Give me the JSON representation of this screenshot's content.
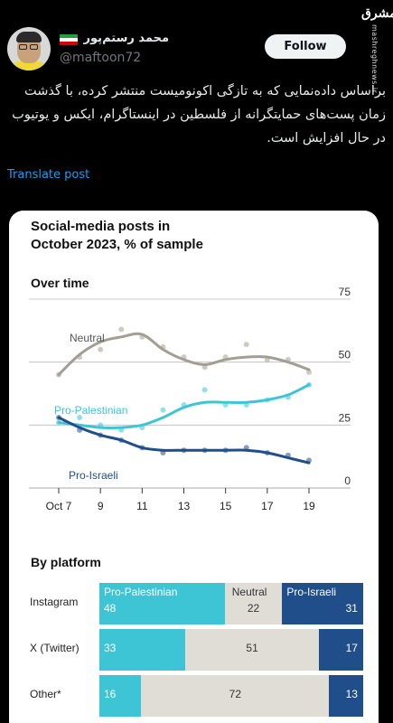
{
  "user": {
    "display_name": "محمد رستم‌پور",
    "handle": "@maftoon72",
    "follow_label": "Follow",
    "flag_colors": [
      "#239f40",
      "#ffffff",
      "#da0000"
    ]
  },
  "watermark": {
    "logo": "مشرق",
    "site": "mashreghnews.ir"
  },
  "tweet": {
    "text": "براساس داده‌نمایی که به تازگی اکونومیست منتشر کرده، با گذشت زمان پست‌های حمایتگرانه از فلسطین در اینستاگرام، ایکس و  یوتیوب در حال افزایش است.",
    "translate_label": "Translate post"
  },
  "card": {
    "title_line1": "Social-media posts in",
    "title_line2": "October 2023, % of sample",
    "over_time_title": "Over time",
    "by_platform_title": "By platform"
  },
  "colors": {
    "neutral": "#a39e94",
    "neutral_bar": "#e0ddd7",
    "pro_palestinian": "#3ec5d5",
    "pro_israeli": "#1f4e8a",
    "grid": "#bbbbbb"
  },
  "chart_data": [
    {
      "type": "line",
      "title": "Over time",
      "x": [
        7,
        8,
        9,
        10,
        11,
        12,
        13,
        14,
        15,
        16,
        17,
        18,
        19
      ],
      "xticks": [
        7,
        9,
        11,
        13,
        15,
        17,
        19
      ],
      "xtick_labels": [
        "Oct 7",
        "9",
        "11",
        "13",
        "15",
        "17",
        "19"
      ],
      "ylim": [
        0,
        75
      ],
      "yticks": [
        0,
        25,
        50,
        75
      ],
      "grid": true,
      "series": [
        {
          "name": "Neutral",
          "color": "#a39e94",
          "smooth": [
            45,
            53,
            58,
            60,
            61,
            55,
            51,
            49,
            51,
            52,
            52,
            50,
            47
          ],
          "points": [
            45,
            52,
            55,
            63,
            60,
            56,
            52,
            48,
            52,
            57,
            51,
            51,
            46
          ]
        },
        {
          "name": "Pro-Palestinian",
          "color": "#3ec5d5",
          "smooth": [
            26,
            25,
            24,
            24,
            25,
            28,
            32,
            34,
            34,
            34,
            35,
            37,
            41
          ],
          "points": [
            26,
            28,
            25,
            23,
            24,
            31,
            33,
            39,
            33,
            33,
            35,
            36,
            41
          ]
        },
        {
          "name": "Pro-Israeli",
          "color": "#1f4e8a",
          "smooth": [
            28,
            24,
            21,
            19,
            16,
            15,
            15,
            15,
            15,
            15,
            14,
            12,
            10
          ],
          "points": [
            28,
            23,
            21,
            19,
            16,
            14,
            15,
            15,
            15,
            16,
            14,
            13,
            11
          ]
        }
      ]
    },
    {
      "type": "bar",
      "title": "By platform",
      "orientation": "horizontal-stacked",
      "categories": [
        "Instagram",
        "X (Twitter)",
        "Other*"
      ],
      "series": [
        {
          "name": "Pro-Palestinian",
          "values": [
            48,
            33,
            16
          ]
        },
        {
          "name": "Neutral",
          "values": [
            22,
            51,
            72
          ]
        },
        {
          "name": "Pro-Israeli",
          "values": [
            31,
            17,
            13
          ]
        }
      ]
    }
  ]
}
